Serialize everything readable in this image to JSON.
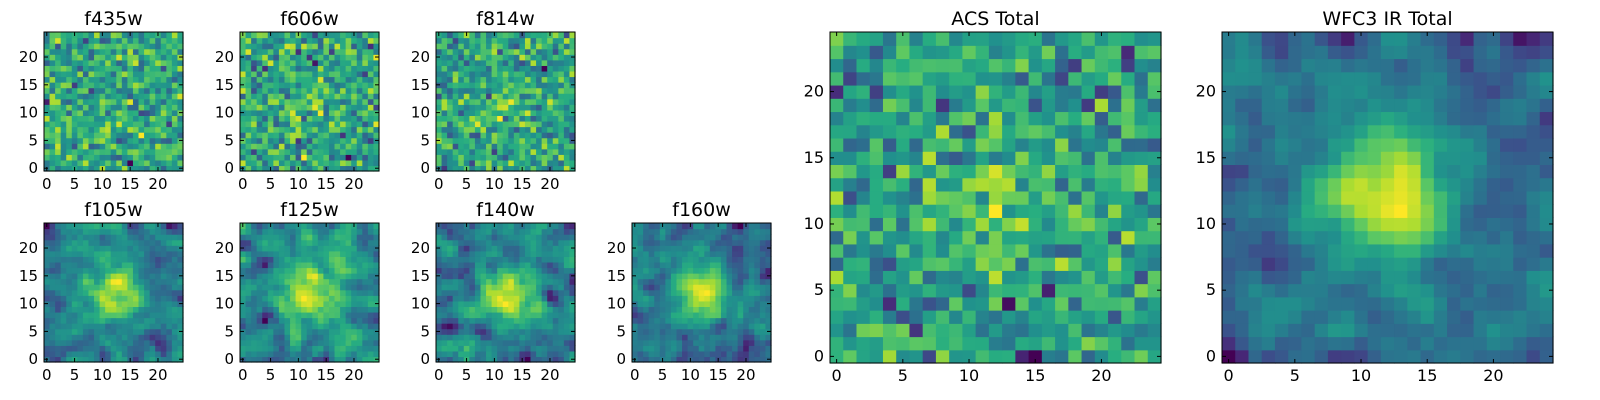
{
  "chart_data": [
    {
      "type": "heatmap",
      "title": "f435w",
      "grid_size": 25,
      "colormap": "viridis",
      "xticks": [
        "0",
        "5",
        "10",
        "15",
        "20"
      ],
      "yticks": [
        "0",
        "5",
        "10",
        "15",
        "20"
      ],
      "xlim": [
        -0.5,
        24.5
      ],
      "ylim": [
        -0.5,
        24.5
      ],
      "blob_strength": 0.0,
      "noise_scale": 1.0,
      "seed": 11
    },
    {
      "type": "heatmap",
      "title": "f606w",
      "grid_size": 25,
      "colormap": "viridis",
      "xticks": [
        "0",
        "5",
        "10",
        "15",
        "20"
      ],
      "yticks": [
        "0",
        "5",
        "10",
        "15",
        "20"
      ],
      "xlim": [
        -0.5,
        24.5
      ],
      "ylim": [
        -0.5,
        24.5
      ],
      "blob_strength": 0.3,
      "noise_scale": 1.0,
      "seed": 23
    },
    {
      "type": "heatmap",
      "title": "f814w",
      "grid_size": 25,
      "colormap": "viridis",
      "xticks": [
        "0",
        "5",
        "10",
        "15",
        "20"
      ],
      "yticks": [
        "0",
        "5",
        "10",
        "15",
        "20"
      ],
      "xlim": [
        -0.5,
        24.5
      ],
      "ylim": [
        -0.5,
        24.5
      ],
      "blob_strength": 0.4,
      "noise_scale": 1.0,
      "seed": 37
    },
    {
      "type": "heatmap",
      "title": "f105w",
      "grid_size": 25,
      "colormap": "viridis",
      "xticks": [
        "0",
        "5",
        "10",
        "15",
        "20"
      ],
      "yticks": [
        "0",
        "5",
        "10",
        "15",
        "20"
      ],
      "xlim": [
        -0.5,
        24.5
      ],
      "ylim": [
        -0.5,
        24.5
      ],
      "blob_strength": 0.8,
      "noise_scale": 0.6,
      "seed": 41
    },
    {
      "type": "heatmap",
      "title": "f125w",
      "grid_size": 25,
      "colormap": "viridis",
      "xticks": [
        "0",
        "5",
        "10",
        "15",
        "20"
      ],
      "yticks": [
        "0",
        "5",
        "10",
        "15",
        "20"
      ],
      "xlim": [
        -0.5,
        24.5
      ],
      "ylim": [
        -0.5,
        24.5
      ],
      "blob_strength": 0.7,
      "noise_scale": 0.6,
      "seed": 53
    },
    {
      "type": "heatmap",
      "title": "f140w",
      "grid_size": 25,
      "colormap": "viridis",
      "xticks": [
        "0",
        "5",
        "10",
        "15",
        "20"
      ],
      "yticks": [
        "0",
        "5",
        "10",
        "15",
        "20"
      ],
      "xlim": [
        -0.5,
        24.5
      ],
      "ylim": [
        -0.5,
        24.5
      ],
      "blob_strength": 0.8,
      "noise_scale": 0.6,
      "seed": 67
    },
    {
      "type": "heatmap",
      "title": "f160w",
      "grid_size": 25,
      "colormap": "viridis",
      "xticks": [
        "0",
        "5",
        "10",
        "15",
        "20"
      ],
      "yticks": [
        "0",
        "5",
        "10",
        "15",
        "20"
      ],
      "xlim": [
        -0.5,
        24.5
      ],
      "ylim": [
        -0.5,
        24.5
      ],
      "blob_strength": 0.9,
      "noise_scale": 0.6,
      "seed": 79
    },
    {
      "type": "heatmap",
      "title": "ACS Total",
      "grid_size": 25,
      "colormap": "viridis",
      "xticks": [
        "0",
        "5",
        "10",
        "15",
        "20"
      ],
      "yticks": [
        "0",
        "5",
        "10",
        "15",
        "20"
      ],
      "xlim": [
        -0.5,
        24.5
      ],
      "ylim": [
        -0.5,
        24.5
      ],
      "blob_strength": 0.5,
      "noise_scale": 0.8,
      "seed": 83
    },
    {
      "type": "heatmap",
      "title": "WFC3 IR Total",
      "grid_size": 25,
      "colormap": "viridis",
      "xticks": [
        "0",
        "5",
        "10",
        "15",
        "20"
      ],
      "yticks": [
        "0",
        "5",
        "10",
        "15",
        "20"
      ],
      "xlim": [
        -0.5,
        24.5
      ],
      "ylim": [
        -0.5,
        24.5
      ],
      "blob_strength": 1.0,
      "noise_scale": 0.45,
      "seed": 97
    }
  ]
}
